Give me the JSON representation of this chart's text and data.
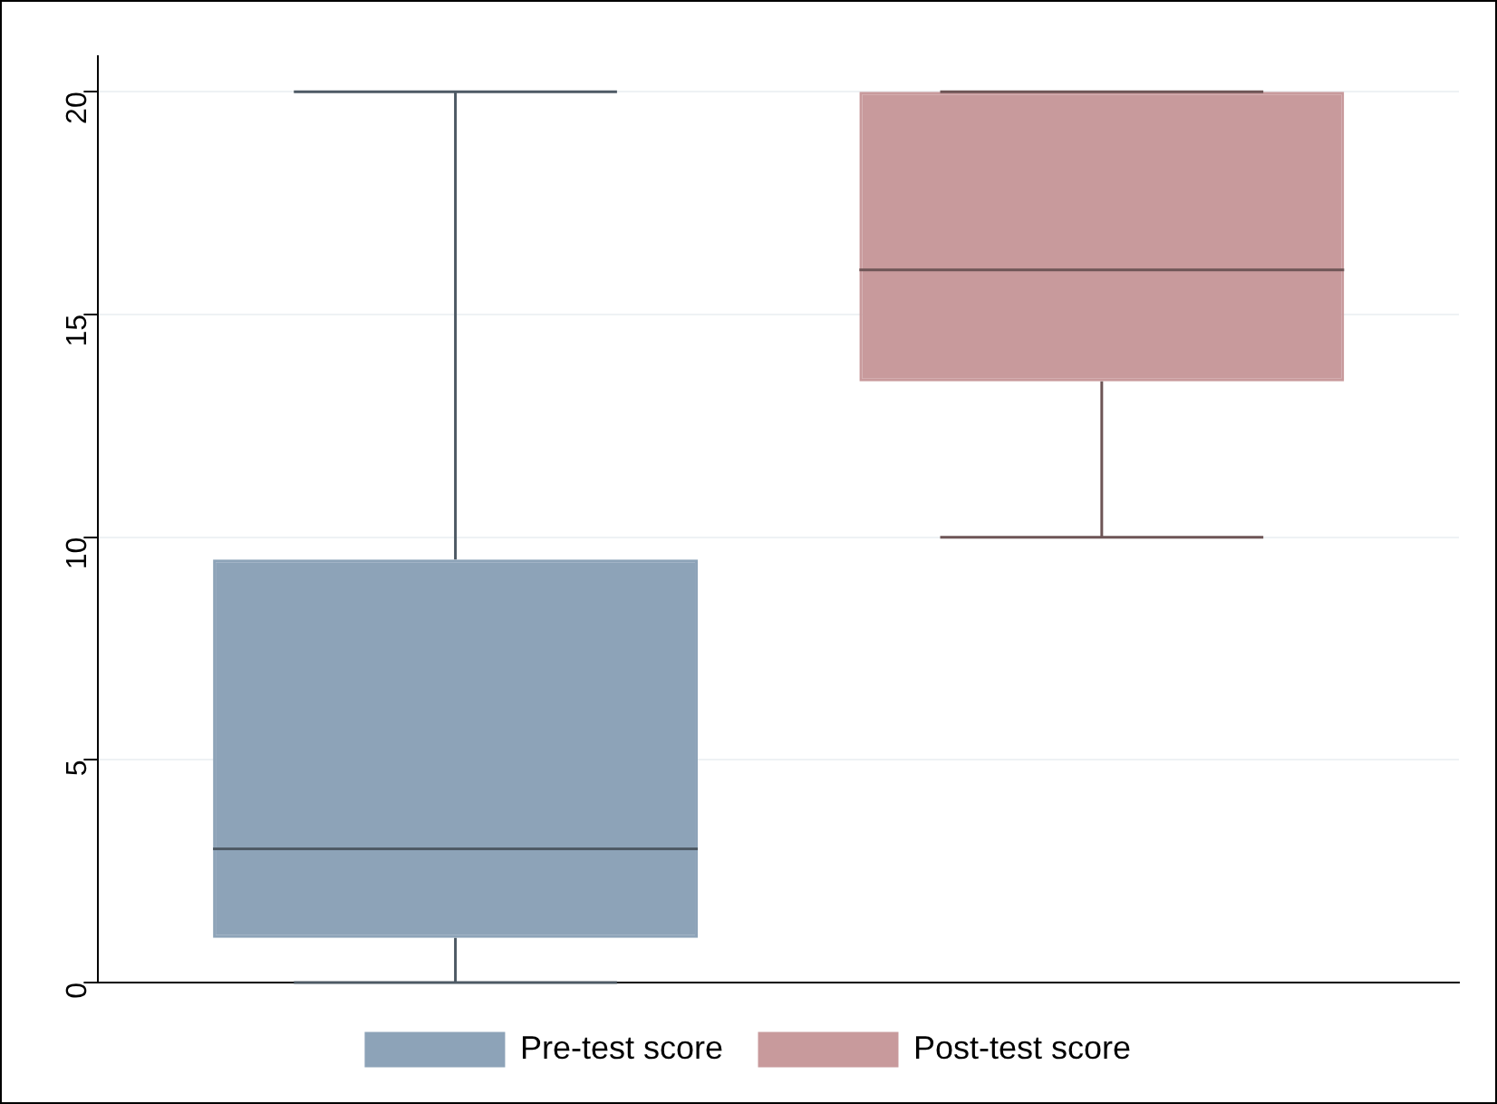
{
  "chart_data": {
    "type": "box",
    "categories": [
      null
    ],
    "series": [
      {
        "name": "Pre-test score",
        "color": "#8da3b8",
        "boxes": [
          {
            "low": 0,
            "q1": 1,
            "median": 3,
            "q3": 9.5,
            "high": 20
          }
        ]
      },
      {
        "name": "Post-test score",
        "color": "#c89a9c",
        "boxes": [
          {
            "low": 10,
            "q1": 13.5,
            "median": 16,
            "q3": 20,
            "high": 20
          }
        ]
      }
    ],
    "ylim": [
      0,
      20.8
    ],
    "yticks": [
      0,
      5,
      10,
      15,
      20
    ],
    "grid": "y",
    "legend": "bottom",
    "tick_labels": "y"
  }
}
